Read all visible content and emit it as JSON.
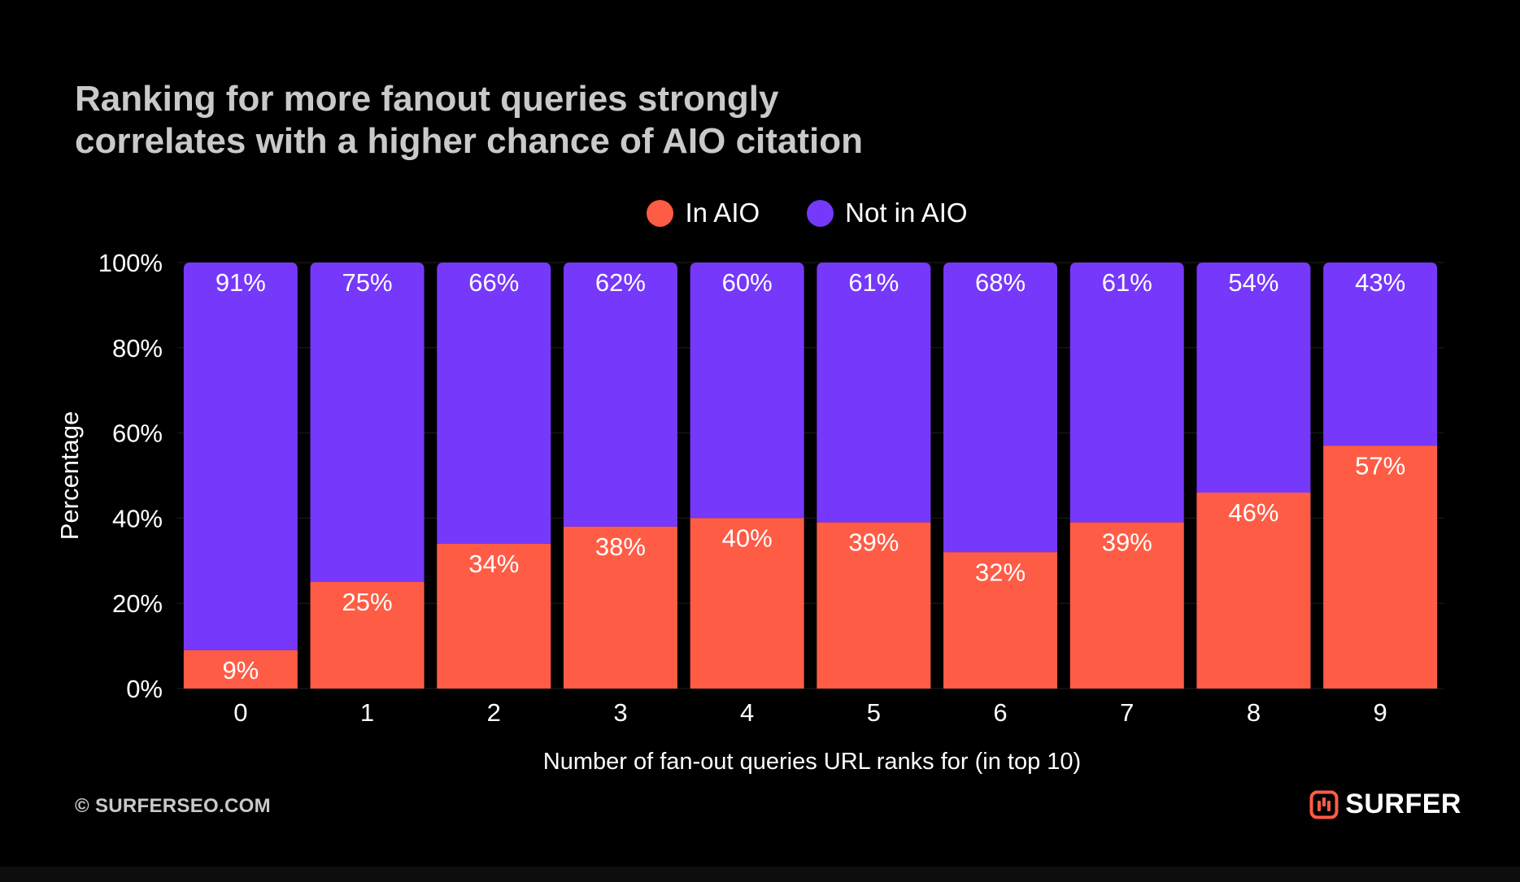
{
  "title_lines": [
    "Ranking for more fanout queries strongly",
    "correlates with a higher chance of AIO citation"
  ],
  "footer": {
    "copyright": "© SURFERSEO.COM",
    "brand": "SURFER",
    "brand_icon": "surfer-logo-icon"
  },
  "colors": {
    "in_aio": "#FF5C46",
    "not_in_aio": "#7638FA",
    "background": "#000000",
    "title": "#C9C9C9",
    "text": "#FFFFFF"
  },
  "chart_data": {
    "type": "bar",
    "stacked": true,
    "categories": [
      "0",
      "1",
      "2",
      "3",
      "4",
      "5",
      "6",
      "7",
      "8",
      "9"
    ],
    "series": [
      {
        "name": "In AIO",
        "values": [
          9,
          25,
          34,
          38,
          40,
          39,
          32,
          39,
          46,
          57
        ],
        "labels": [
          "9%",
          "25%",
          "34%",
          "38%",
          "40%",
          "39%",
          "32%",
          "39%",
          "46%",
          "57%"
        ],
        "color": "#FF5C46"
      },
      {
        "name": "Not in AIO",
        "values": [
          91,
          75,
          66,
          62,
          60,
          61,
          68,
          61,
          54,
          43
        ],
        "labels": [
          "91%",
          "75%",
          "66%",
          "62%",
          "60%",
          "61%",
          "68%",
          "61%",
          "54%",
          "43%"
        ],
        "color": "#7638FA"
      }
    ],
    "xlabel": "Number of fan-out queries URL ranks for (in top 10)",
    "ylabel": "Percentage",
    "ylim": [
      0,
      100
    ],
    "yticks": [
      "0%",
      "20%",
      "40%",
      "60%",
      "80%",
      "100%"
    ],
    "grid": true,
    "legend": "top-center"
  }
}
